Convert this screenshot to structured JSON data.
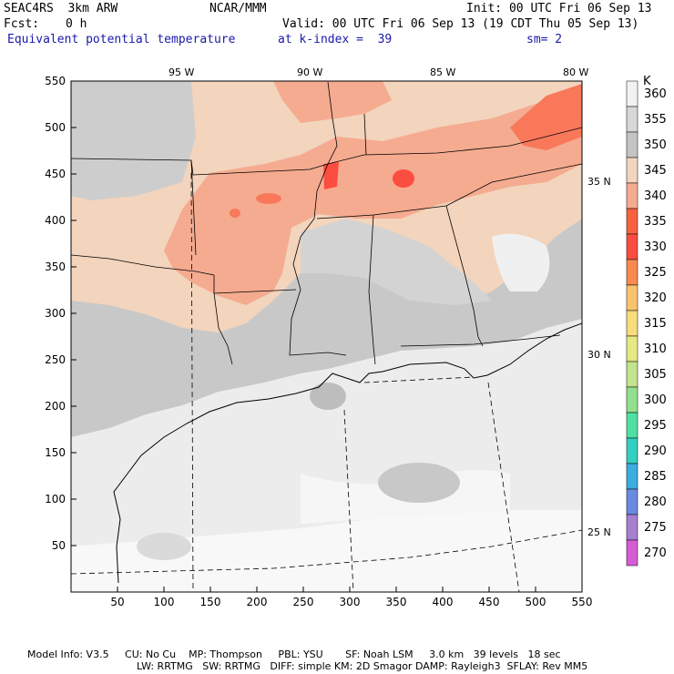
{
  "header": {
    "model": "SEAC4RS  3km ARW",
    "org": "NCAR/MMM",
    "init": "Init: 00 UTC Fri 06 Sep 13",
    "fcst_label": "Fcst:",
    "fcst_value": "0 h",
    "valid": "Valid: 00 UTC Fri 06 Sep 13 (19 CDT Thu 05 Sep 13)",
    "field": "Equivalent potential temperature",
    "level": "at k-index =  39",
    "smooth": "sm= 2"
  },
  "axes": {
    "x_ticks": [
      "50",
      "100",
      "150",
      "200",
      "250",
      "300",
      "350",
      "400",
      "450",
      "500",
      "550"
    ],
    "y_ticks": [
      "50",
      "100",
      "150",
      "200",
      "250",
      "300",
      "350",
      "400",
      "450",
      "500",
      "550"
    ],
    "lon_labels": [
      "95 W",
      "90 W",
      "85 W",
      "80 W"
    ],
    "lat_labels": [
      "35 N",
      "30 N",
      "25 N"
    ]
  },
  "colorbar": {
    "unit": "K",
    "levels": [
      "360",
      "355",
      "350",
      "345",
      "340",
      "335",
      "330",
      "325",
      "320",
      "315",
      "310",
      "305",
      "300",
      "295",
      "290",
      "285",
      "280",
      "275",
      "270"
    ],
    "colors": [
      "#f2f2f2",
      "#d8d8d8",
      "#c4c4c4",
      "#f3d4bc",
      "#f5ab90",
      "#f96040",
      "#fb4d40",
      "#f88a50",
      "#f9c36e",
      "#f7dd7c",
      "#e6e982",
      "#c3e48c",
      "#92e08e",
      "#4fe0a3",
      "#33cfc0",
      "#3aaedf",
      "#6a8ae0",
      "#a77fd0",
      "#d65dd6"
    ]
  },
  "footer": {
    "line1": "Model Info: V3.5     CU: No Cu    MP: Thompson     PBL: YSU       SF: Noah LSM     3.0 km   39 levels   18 sec",
    "line2": "LW: RRTMG   SW: RRTMG   DIFF: simple KM: 2D Smagor DAMP: Rayleigh3  SFLAY: Rev MM5"
  }
}
